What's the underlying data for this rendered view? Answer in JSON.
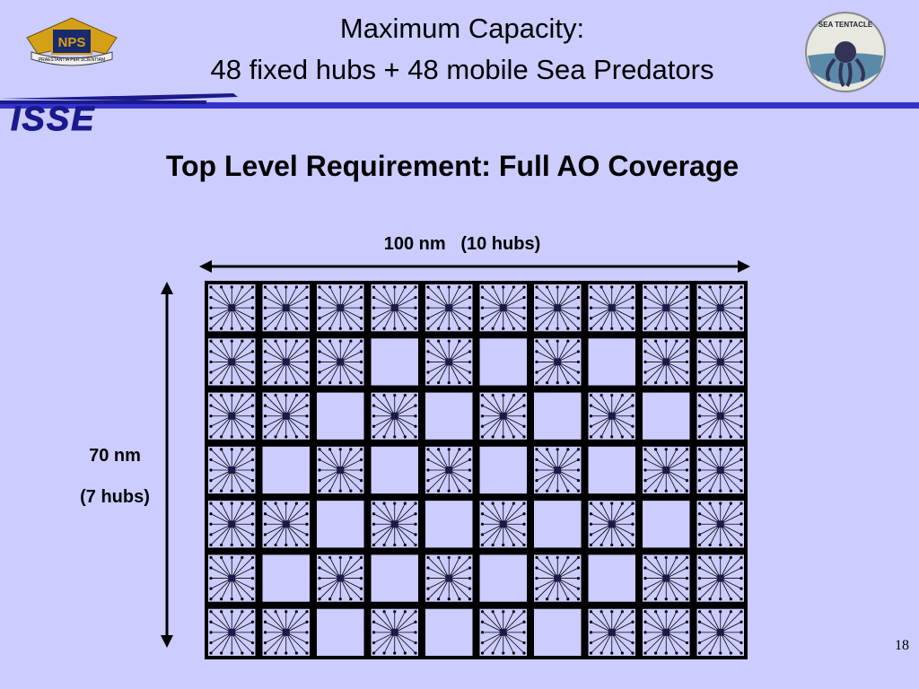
{
  "header": {
    "title_line1": "Maximum Capacity:",
    "title_line2": "48 fixed hubs + 48 mobile Sea Predators",
    "logo_left": "NPS",
    "logo_left_motto": "PRAESTANTIA PER SCIENTIAM",
    "logo_right": "SEA TENTACLE",
    "program_logo": "ISSE"
  },
  "subtitle": "Top Level Requirement: Full AO Coverage",
  "width_label": "100 nm   (10 hubs)",
  "height_label_line1": "70 nm",
  "height_label_line2": "(7 hubs)",
  "grid": {
    "rows": [
      [
        1,
        1,
        1,
        1,
        1,
        1,
        1,
        1,
        1,
        1
      ],
      [
        1,
        1,
        1,
        0,
        1,
        0,
        1,
        0,
        1,
        1
      ],
      [
        1,
        1,
        0,
        1,
        0,
        1,
        0,
        1,
        0,
        1
      ],
      [
        1,
        0,
        1,
        0,
        1,
        0,
        1,
        0,
        1,
        1
      ],
      [
        1,
        1,
        0,
        1,
        0,
        1,
        0,
        1,
        0,
        1
      ],
      [
        1,
        0,
        1,
        0,
        1,
        0,
        1,
        0,
        1,
        1
      ],
      [
        1,
        1,
        0,
        1,
        0,
        1,
        0,
        1,
        1,
        1
      ]
    ]
  },
  "page_number": "18"
}
